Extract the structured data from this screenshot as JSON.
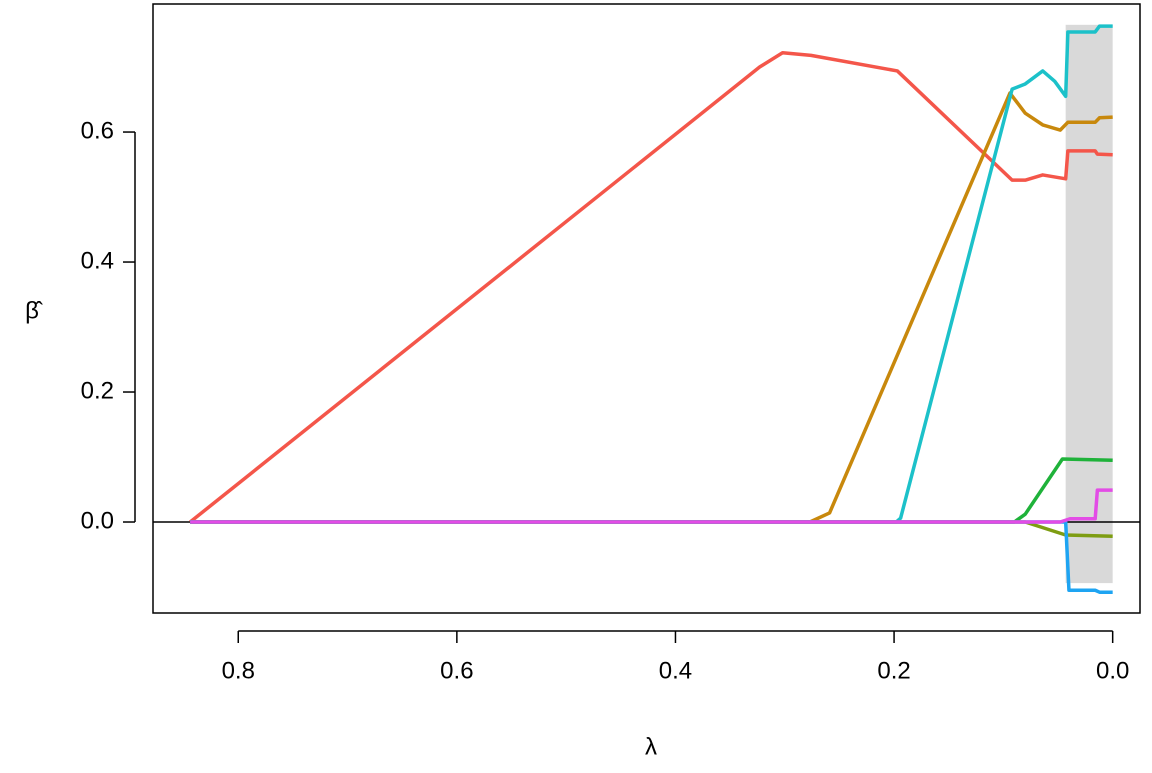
{
  "chart_data": {
    "type": "line",
    "xlabel": "λ",
    "ylabel": "β̂",
    "xlim": [
      0.878,
      -0.025
    ],
    "ylim": [
      -0.14,
      0.797
    ],
    "xticks": [
      0.8,
      0.6,
      0.4,
      0.2,
      {
        "value": 0,
        "label": "0.0"
      }
    ],
    "yticks": [
      {
        "value": 0,
        "label": "0.0"
      },
      0.2,
      0.4,
      0.6
    ],
    "hline": 0,
    "shade": {
      "color": "#d9d9d9",
      "xlim": [
        0.043,
        0
      ],
      "ylim": [
        -0.094,
        0.765
      ]
    },
    "series": [
      {
        "color": "#f4564a",
        "x": [
          0.844,
          0.323,
          0.302,
          0.276,
          0.197,
          0.092,
          0.08,
          0.064,
          0.043,
          0.041,
          0.016,
          0.014,
          0
        ],
        "values": [
          0,
          0.7,
          0.722,
          0.718,
          0.694,
          0.526,
          0.526,
          0.534,
          0.528,
          0.571,
          0.571,
          0.566,
          0.565
        ]
      },
      {
        "color": "#c8880c",
        "x": [
          0.844,
          0.277,
          0.259,
          0.094,
          0.08,
          0.064,
          0.048,
          0.041,
          0.016,
          0.012,
          0
        ],
        "values": [
          0,
          0,
          0.014,
          0.66,
          0.629,
          0.611,
          0.603,
          0.615,
          0.615,
          0.622,
          0.623
        ]
      },
      {
        "color": "#1cc1c9",
        "x": [
          0.844,
          0.198,
          0.194,
          0.092,
          0.08,
          0.064,
          0.053,
          0.043,
          0.041,
          0.016,
          0.012,
          0
        ],
        "values": [
          0,
          0,
          0.006,
          0.666,
          0.674,
          0.694,
          0.678,
          0.655,
          0.754,
          0.754,
          0.763,
          0.763
        ]
      },
      {
        "color": "#1fb23a",
        "x": [
          0.844,
          0.09,
          0.08,
          0.046,
          0
        ],
        "values": [
          0,
          0,
          0.012,
          0.097,
          0.095
        ]
      },
      {
        "color": "#7e9d12",
        "x": [
          0.844,
          0.08,
          0.043,
          0
        ],
        "values": [
          0,
          0,
          -0.02,
          -0.022
        ]
      },
      {
        "color": "#1ea4f2",
        "x": [
          0.844,
          0.043,
          0.04,
          0.016,
          0.012,
          0
        ],
        "values": [
          0,
          0,
          -0.105,
          -0.105,
          -0.108,
          -0.108
        ]
      },
      {
        "color": "#e34ce6",
        "x": [
          0.844,
          0.048,
          0.039,
          0.016,
          0.014,
          0
        ],
        "values": [
          0,
          0,
          0.005,
          0.005,
          0.049,
          0.049
        ]
      }
    ]
  }
}
